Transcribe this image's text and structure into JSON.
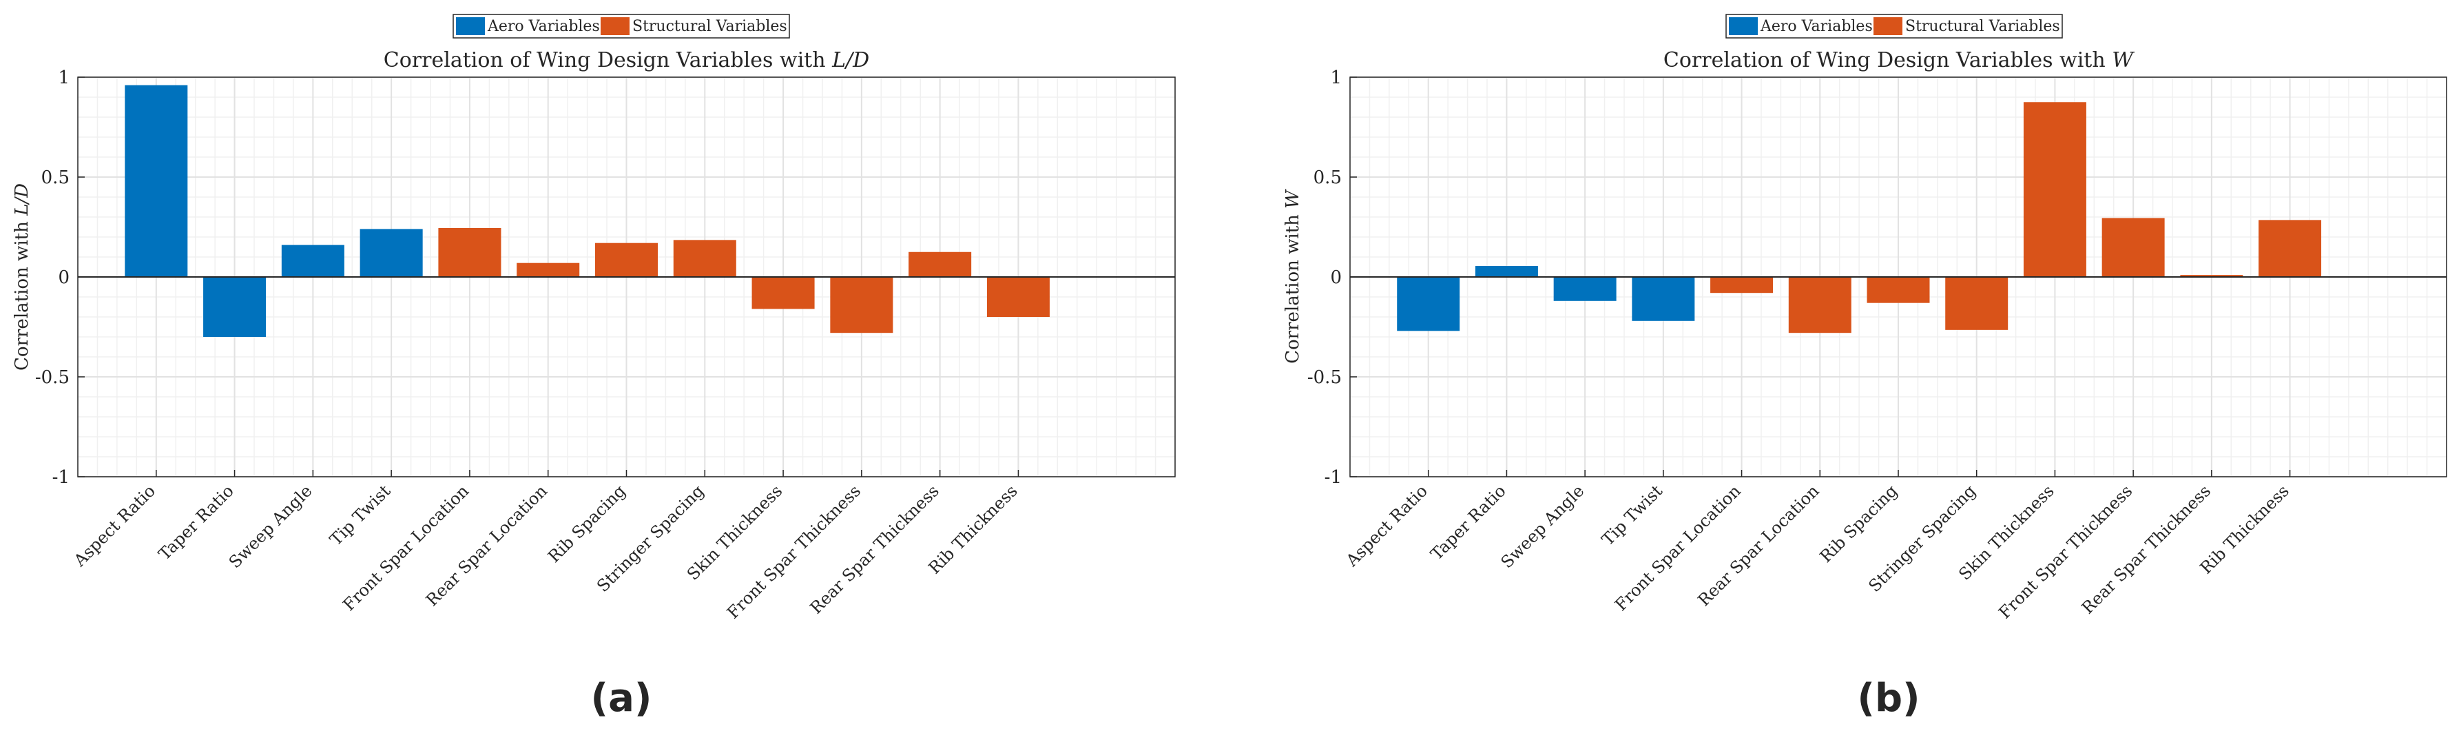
{
  "colors": {
    "aero": "#0072BD",
    "structural": "#D95319"
  },
  "chart_data": [
    {
      "type": "bar",
      "title_prefix": "Correlation of Wing Design Variables with ",
      "title_var": "L/D",
      "ylabel_prefix": "Correlation with ",
      "ylabel_var": "L/D",
      "ylim": [
        -1,
        1
      ],
      "yticks": [
        1,
        0.5,
        0,
        -0.5,
        -1
      ],
      "ytick_labels": [
        "1",
        "0.5",
        "0",
        "-0.5",
        "-1"
      ],
      "grid": true,
      "legend_position": "top-center",
      "legend": [
        "Aero Variables",
        "Structural Variables"
      ],
      "categories": [
        "Aspect Ratio",
        "Taper Ratio",
        "Sweep Angle",
        "Tip Twist",
        "Front Spar Location",
        "Rear Spar Location",
        "Rib Spacing",
        "Stringer Spacing",
        "Skin Thickness",
        "Front Spar Thickness",
        "Rear Spar Thickness",
        "Rib Thickness"
      ],
      "groups": [
        "aero",
        "aero",
        "aero",
        "aero",
        "structural",
        "structural",
        "structural",
        "structural",
        "structural",
        "structural",
        "structural",
        "structural"
      ],
      "values": [
        0.96,
        -0.3,
        0.16,
        0.24,
        0.245,
        0.07,
        0.17,
        0.185,
        -0.16,
        -0.28,
        0.125,
        -0.2
      ],
      "panel_label": "(a)"
    },
    {
      "type": "bar",
      "title_prefix": "Correlation of Wing Design Variables with ",
      "title_var": "W",
      "ylabel_prefix": "Correlation with ",
      "ylabel_var": "W",
      "ylim": [
        -1,
        1
      ],
      "yticks": [
        1,
        0.5,
        0,
        -0.5,
        -1
      ],
      "ytick_labels": [
        "1",
        "0.5",
        "0",
        "-0.5",
        "-1"
      ],
      "grid": true,
      "legend_position": "top-center",
      "legend": [
        "Aero Variables",
        "Structural Variables"
      ],
      "categories": [
        "Aspect Ratio",
        "Taper Ratio",
        "Sweep Angle",
        "Tip Twist",
        "Front Spar Location",
        "Rear Spar Location",
        "Rib Spacing",
        "Stringer Spacing",
        "Skin Thickness",
        "Front Spar Thickness",
        "Rear Spar Thickness",
        "Rib Thickness"
      ],
      "groups": [
        "aero",
        "aero",
        "aero",
        "aero",
        "structural",
        "structural",
        "structural",
        "structural",
        "structural",
        "structural",
        "structural",
        "structural"
      ],
      "values": [
        -0.27,
        0.055,
        -0.12,
        -0.22,
        -0.08,
        -0.28,
        -0.13,
        -0.265,
        0.875,
        0.295,
        0.01,
        0.285
      ],
      "panel_label": "(b)"
    }
  ]
}
